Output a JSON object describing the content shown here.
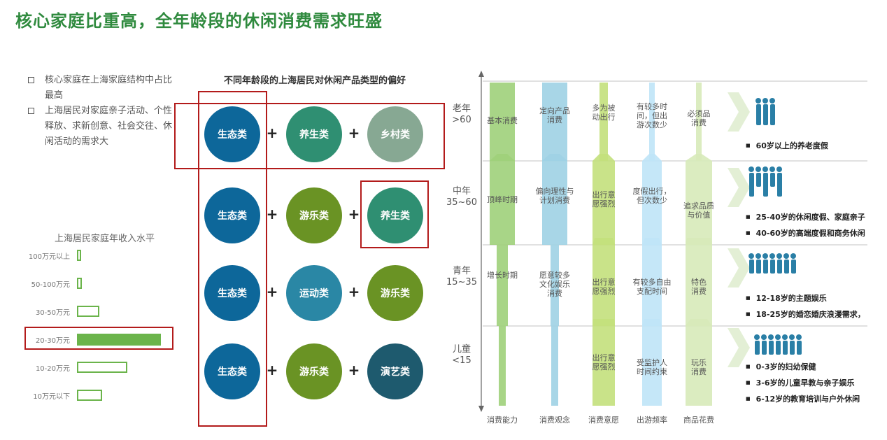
{
  "title": "核心家庭比重高，全年龄段的休闲消费需求旺盛",
  "bullets": [
    {
      "lines": [
        "核心家庭在上海家庭结构中占比",
        "最高"
      ]
    },
    {
      "lines": [
        "上海居民对家庭亲子活动、个性",
        "释放、求新创意、社会交往、休",
        "闲活动的需求大"
      ]
    }
  ],
  "income": {
    "title": "上海居民家庭年收入水平",
    "rows": [
      {
        "label": "100万元以上",
        "share": 0.02,
        "highlight": false
      },
      {
        "label": "50-100万元",
        "share": 0.06,
        "highlight": false
      },
      {
        "label": "30-50万元",
        "share": 0.27,
        "highlight": false
      },
      {
        "label": "20-30万元",
        "share": 1.0,
        "highlight": true
      },
      {
        "label": "10-20万元",
        "share": 0.6,
        "highlight": false
      },
      {
        "label": "10万元以下",
        "share": 0.3,
        "highlight": false
      }
    ]
  },
  "preference": {
    "title": "不同年龄段的上海居民对休闲产品类型的偏好",
    "plus": "+",
    "rows": [
      [
        "生态类",
        "养生类",
        "乡村类"
      ],
      [
        "生态类",
        "游乐类",
        "养生类"
      ],
      [
        "生态类",
        "运动类",
        "游乐类"
      ],
      [
        "生态类",
        "游乐类",
        "演艺类"
      ]
    ],
    "colors": {
      "生态类": "#0d679a",
      "养生类": "#2f8f72",
      "乡村类": "#87a893",
      "游乐类": "#6a9324",
      "运动类": "#2a87a5",
      "演艺类": "#1e5a6e"
    }
  },
  "matrix": {
    "row_labels": [
      [
        "老年",
        ">60"
      ],
      [
        "中年",
        "35~60"
      ],
      [
        "青年",
        "15~35"
      ],
      [
        "儿童",
        "<15"
      ]
    ],
    "col_labels": [
      "消费能力",
      "消费观念",
      "消费意愿",
      "出游频率",
      "商品花费"
    ],
    "cells": [
      [
        [
          "基本消费"
        ],
        [
          "定向产品",
          "消费"
        ],
        [
          "多为被",
          "动出行"
        ],
        [
          "有较多时",
          "间，但出",
          "游次数少"
        ],
        [
          "必须品",
          "消费"
        ]
      ],
      [
        [
          "顶峰时期"
        ],
        [
          "偏向理性与",
          "计划消费"
        ],
        [
          "出行意",
          "愿强烈"
        ],
        [
          "度假出行，",
          "但次数少"
        ],
        [
          "追求品质",
          "与价值"
        ]
      ],
      [
        [
          "增长时期"
        ],
        [
          "愿意较多",
          "文化娱乐",
          "消费"
        ],
        [
          "出行意",
          "愿强烈"
        ],
        [
          "有较多自由",
          "支配时间"
        ],
        [
          "特色",
          "消费"
        ]
      ],
      [
        [],
        [],
        [
          "出行意",
          "愿强烈"
        ],
        [
          "受监护人",
          "时间约束"
        ],
        [
          "玩乐",
          "消费"
        ]
      ]
    ],
    "colors": [
      "#9fd07a",
      "#9fd2e4",
      "#c3e07c",
      "#bfe4f7",
      "#d7eab9"
    ]
  },
  "segments": [
    {
      "icon": "elderly-couple-icon",
      "items": [
        "60岁以上的养老度假"
      ]
    },
    {
      "icon": "family-icon",
      "items": [
        "25-40岁的休闲度假、家庭亲子",
        "40-60岁的高端度假和商务休闲"
      ]
    },
    {
      "icon": "young-people-icon",
      "items": [
        "12-18岁的主题娱乐",
        "18-25岁的婚恋婚庆浪漫需求，"
      ]
    },
    {
      "icon": "children-icon",
      "items": [
        "0-3岁的妇幼保健",
        "3-6岁的儿童早教与亲子娱乐",
        "6-12岁的教育培训与户外休闲"
      ]
    }
  ]
}
